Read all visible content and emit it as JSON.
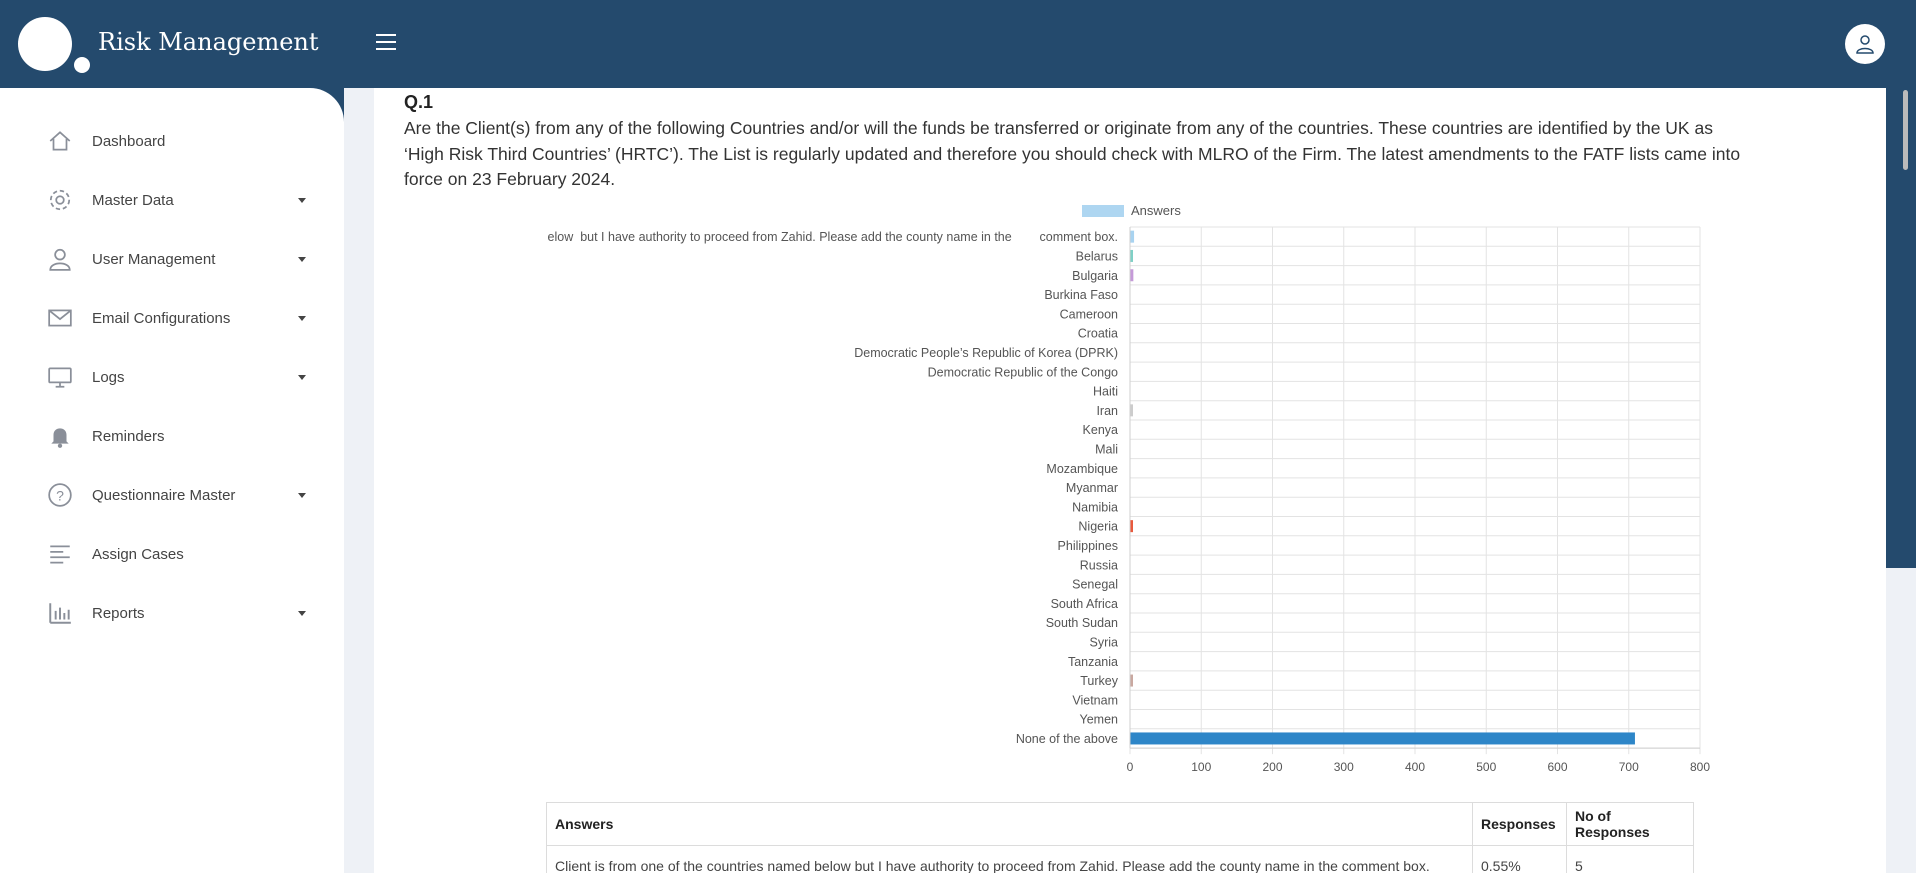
{
  "app": {
    "title": "Risk Management"
  },
  "sidebar": {
    "items": [
      {
        "label": "Dashboard",
        "icon": "home-icon",
        "has_caret": false
      },
      {
        "label": "Master Data",
        "icon": "gear-icon",
        "has_caret": true
      },
      {
        "label": "User Management",
        "icon": "user-icon",
        "has_caret": true
      },
      {
        "label": "Email Configurations",
        "icon": "mail-icon",
        "has_caret": true
      },
      {
        "label": "Logs",
        "icon": "monitor-icon",
        "has_caret": true
      },
      {
        "label": "Reminders",
        "icon": "bell-icon",
        "has_caret": false
      },
      {
        "label": "Questionnaire Master",
        "icon": "question-icon",
        "has_caret": true
      },
      {
        "label": "Assign Cases",
        "icon": "align-left-icon",
        "has_caret": false
      },
      {
        "label": "Reports",
        "icon": "bar-chart-icon",
        "has_caret": true
      }
    ]
  },
  "question": {
    "number": "Q.1",
    "text": "Are the Client(s) from any of the following Countries and/or will the funds be transferred or originate from any of the countries. These countries are identified by the UK as ‘High Risk Third Countries’ (HRTC’). The List is regularly updated and therefore you should check with MLRO of the Firm. The latest amendments to the FATF lists came into force on 23 February 2024."
  },
  "chart_data": {
    "type": "bar",
    "orientation": "horizontal",
    "legend": "Answers",
    "legend_placement": "top",
    "categories": [
      "elow  but I have authority to proceed from Zahid. Please add the county name in the        comment box.",
      "Belarus",
      "Bulgaria",
      "Burkina Faso",
      "Cameroon",
      "Croatia",
      "Democratic People’s Republic of Korea (DPRK)",
      "Democratic Republic of the Congo",
      "Haiti",
      "Iran",
      "Kenya",
      "Mali",
      "Mozambique",
      "Myanmar",
      "Namibia",
      "Nigeria",
      "Philippines",
      "Russia",
      "Senegal",
      "South Africa",
      "South Sudan",
      "Syria",
      "Tanzania",
      "Turkey",
      "Vietnam",
      "Yemen",
      "None of the above"
    ],
    "values": [
      5,
      2,
      4,
      0,
      0,
      0,
      0,
      0,
      0,
      1,
      0,
      0,
      0,
      0,
      0,
      3,
      0,
      0,
      0,
      0,
      0,
      0,
      0,
      2,
      0,
      0,
      708
    ],
    "bar_colors": [
      "#a8d3f0",
      "#7fd0c6",
      "#c59ad8",
      "#cccccc",
      "#cccccc",
      "#cccccc",
      "#cccccc",
      "#cccccc",
      "#cccccc",
      "#cccccc",
      "#cccccc",
      "#cccccc",
      "#cccccc",
      "#cccccc",
      "#cccccc",
      "#e8593d",
      "#cccccc",
      "#cccccc",
      "#cccccc",
      "#cccccc",
      "#cccccc",
      "#cccccc",
      "#cccccc",
      "#c9a8a0",
      "#cccccc",
      "#cccccc",
      "#2e86c8"
    ],
    "xticks": [
      0,
      100,
      200,
      300,
      400,
      500,
      600,
      700,
      800
    ],
    "xlim": [
      0,
      800
    ],
    "grid": true
  },
  "table": {
    "headers": [
      "Answers",
      "Responses",
      "No of Responses"
    ],
    "rows": [
      [
        "Client is from one of the countries named below but I have authority to proceed from Zahid. Please add the county name in the comment box.",
        "0.55%",
        "5"
      ]
    ]
  },
  "colors": {
    "header_bg": "#244a6d",
    "primary_bar": "#2e86c8",
    "legend_swatch": "#aed6f1"
  }
}
